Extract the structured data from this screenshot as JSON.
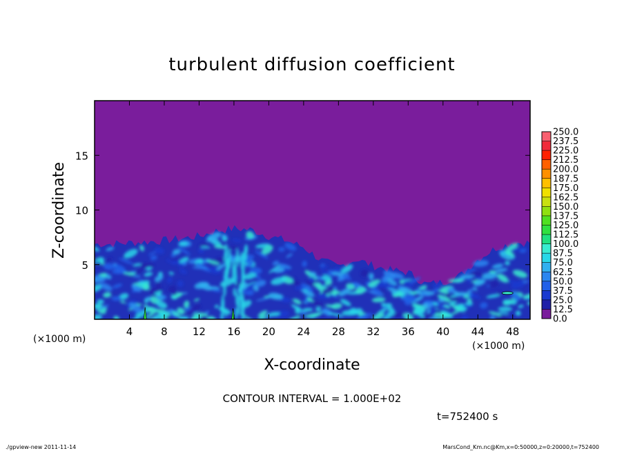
{
  "chart_data": {
    "type": "heatmap",
    "title": "turbulent diffusion coefficient",
    "xlabel": "X-coordinate",
    "ylabel": "Z-coordinate",
    "x_unit_left": "(×1000 m)",
    "x_unit_right": "(×1000 m)",
    "xlim": [
      0,
      50
    ],
    "ylim": [
      0,
      20
    ],
    "x_ticks": [
      "4",
      "8",
      "12",
      "16",
      "20",
      "24",
      "28",
      "32",
      "36",
      "40",
      "44",
      "48"
    ],
    "y_ticks": [
      "5",
      "10",
      "15"
    ],
    "background_value_color": "#7a1d9c",
    "boundary_layer_height_profile": {
      "x": [
        0,
        2,
        4,
        6,
        8,
        10,
        12,
        14,
        16,
        18,
        20,
        22,
        24,
        26,
        28,
        30,
        32,
        34,
        36,
        38,
        40,
        42,
        44,
        46,
        48,
        50
      ],
      "z": [
        6.9,
        6.9,
        7.0,
        7.1,
        7.2,
        7.4,
        7.6,
        8.1,
        8.3,
        8.2,
        7.6,
        7.2,
        6.6,
        5.4,
        4.8,
        5.5,
        4.9,
        4.5,
        4.3,
        3.2,
        3.4,
        4.0,
        5.5,
        6.5,
        7.0,
        7.0
      ]
    },
    "colorbar": {
      "levels": [
        "0.0",
        "12.5",
        "25.0",
        "37.5",
        "50.0",
        "62.5",
        "75.0",
        "87.5",
        "100.0",
        "112.5",
        "125.0",
        "137.5",
        "150.0",
        "162.5",
        "175.0",
        "187.5",
        "200.0",
        "212.5",
        "225.0",
        "237.5",
        "250.0"
      ],
      "colors": [
        "#7a1d9c",
        "#2020a8",
        "#1a3ad0",
        "#2060e8",
        "#2a86f0",
        "#30b0f0",
        "#28d8e8",
        "#38ecd0",
        "#20e080",
        "#30e040",
        "#50e020",
        "#90e010",
        "#c8e010",
        "#f0e000",
        "#ffc000",
        "#ff9000",
        "#ff6000",
        "#ff2000",
        "#f02a3a",
        "#f86070"
      ]
    }
  },
  "labels": {
    "contour_interval": "CONTOUR INTERVAL = 1.000E+02",
    "time": "t=752400 s",
    "footer_left": "./gpview-new  2011-11-14",
    "footer_right": "MarsCond_Km.nc@Km,x=0:50000,z=0:20000,t=752400"
  }
}
